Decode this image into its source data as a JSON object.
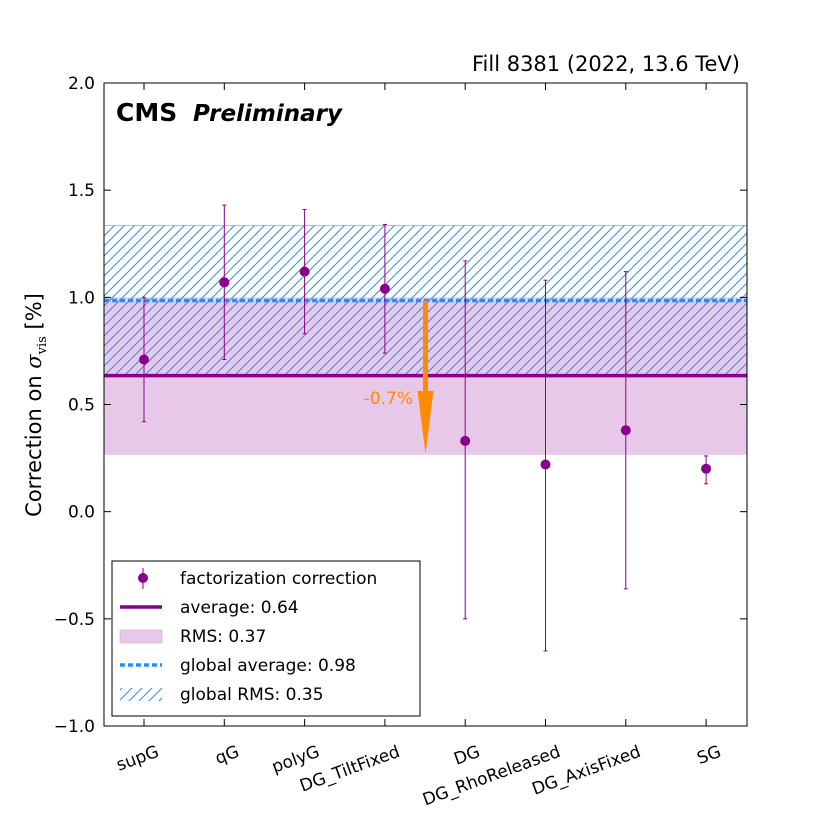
{
  "chart_data": {
    "type": "scatter",
    "title": "Fill 8381 (2022, 13.6 TeV)",
    "experiment": "CMS",
    "status": "Preliminary",
    "ylabel": "Correction on ",
    "ylabel_symbol": "σ",
    "ylabel_subscript": "vis",
    "ylabel_unit": " [%]",
    "xlabel": "",
    "ylim": [
      -1.0,
      2.0
    ],
    "yticks": [
      -1.0,
      -0.5,
      0.0,
      0.5,
      1.0,
      1.5,
      2.0
    ],
    "ytick_labels": [
      "−1.0",
      "−0.5",
      "0.0",
      "0.5",
      "1.0",
      "1.5",
      "2.0"
    ],
    "categories": [
      "supG",
      "qG",
      "polyG",
      "DG_TiltFixed",
      "DG",
      "DG_RhoReleased",
      "DG_AxisFixed",
      "SG"
    ],
    "series": [
      {
        "name": "factorization correction",
        "values": [
          0.71,
          1.07,
          1.12,
          1.04,
          0.33,
          0.22,
          0.38,
          0.2
        ],
        "err_low": [
          0.42,
          0.71,
          0.83,
          0.74,
          -0.5,
          -0.65,
          -0.36,
          0.13
        ],
        "err_high": [
          1.0,
          1.43,
          1.41,
          1.34,
          1.17,
          1.08,
          1.12,
          0.26
        ],
        "color": "#8b008b"
      }
    ],
    "average": 0.635,
    "rms_band": [
      0.265,
      1.0
    ],
    "global_average": 0.985,
    "global_rms_band": [
      0.635,
      1.335
    ],
    "annotation": {
      "text": "-0.7%",
      "arrow_from": 0.985,
      "arrow_to": 0.27,
      "color": "#ff8c00"
    },
    "legend": {
      "position": "bottom-left",
      "entries": [
        "factorization correction",
        "average: 0.64",
        "RMS: 0.37",
        "global average: 0.98",
        "global RMS: 0.35"
      ]
    },
    "colors": {
      "points": "#8b008b",
      "average": "#8b008b",
      "rms_fill": "#e8c8e8",
      "global_average": "#1e90ff",
      "global_rms_hatch": "#1e90ff",
      "arrow": "#ff8c00"
    }
  }
}
